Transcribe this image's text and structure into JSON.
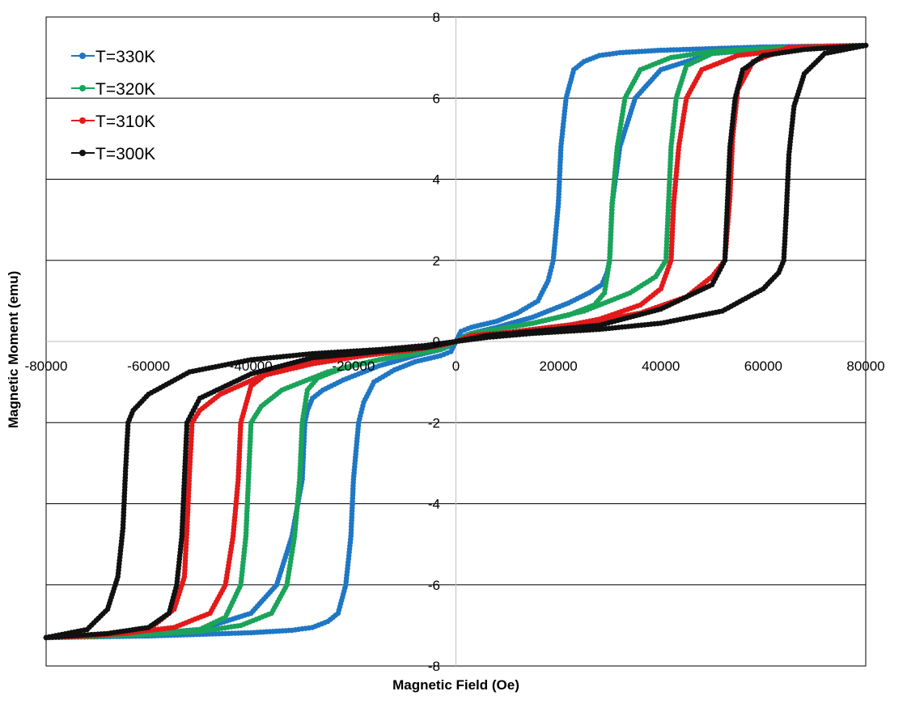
{
  "chart_data": {
    "type": "scatter",
    "title": "",
    "xlabel": "Magnetic Field (Oe)",
    "ylabel": "Magnetic Moment (emu)",
    "xlim": [
      -80000,
      80000
    ],
    "ylim": [
      -8,
      8
    ],
    "x_ticks": [
      -80000,
      -60000,
      -40000,
      -20000,
      0,
      20000,
      40000,
      60000,
      80000
    ],
    "y_ticks": [
      -8,
      -6,
      -4,
      -2,
      0,
      2,
      4,
      6,
      8
    ],
    "x_tick_labels": [
      "-80000",
      "-60000",
      "-40000",
      "-20000",
      "0",
      "20000",
      "40000",
      "60000",
      "80000"
    ],
    "y_tick_labels": [
      "-8",
      "-6",
      "-4",
      "-2",
      "0",
      "2",
      "4",
      "6",
      "8"
    ],
    "grid": "horizontal",
    "legend_position": "top-left",
    "series": [
      {
        "name": "T=330K",
        "color": "#1f77c4",
        "x": [
          -80000,
          -70000,
          -60000,
          -50000,
          -40000,
          -35000,
          -32000,
          -30000,
          -29500,
          -29000,
          -28000,
          -26000,
          -22000,
          -15000,
          -8000,
          -3000,
          -1000,
          0,
          1000,
          3000,
          8000,
          12000,
          16000,
          18000,
          19000,
          20000,
          20500,
          21500,
          23000,
          25000,
          28000,
          32000,
          40000,
          50000,
          60000,
          70000,
          80000,
          70000,
          60000,
          50000,
          40000,
          35000,
          32000,
          30500,
          30000,
          29500,
          28500,
          26000,
          22000,
          15000,
          8000,
          3000,
          1000,
          0,
          -1000,
          -3000,
          -8000,
          -12000,
          -16000,
          -18000,
          -19000,
          -20000,
          -20500,
          -21500,
          -23000,
          -25000,
          -28000,
          -32000,
          -40000,
          -50000,
          -60000,
          -70000,
          -80000
        ],
        "y": [
          -7.3,
          -7.25,
          -7.2,
          -7.1,
          -6.7,
          -6.0,
          -4.8,
          -3.4,
          -2.0,
          -1.7,
          -1.4,
          -1.2,
          -0.95,
          -0.6,
          -0.35,
          -0.2,
          -0.1,
          0.0,
          0.25,
          0.35,
          0.5,
          0.7,
          1.0,
          1.5,
          2.0,
          3.4,
          4.8,
          6.0,
          6.7,
          6.9,
          7.05,
          7.12,
          7.18,
          7.22,
          7.26,
          7.28,
          7.3,
          7.25,
          7.2,
          7.1,
          6.7,
          6.0,
          4.8,
          3.4,
          2.0,
          1.7,
          1.4,
          1.2,
          0.95,
          0.6,
          0.35,
          0.2,
          0.1,
          0.0,
          -0.25,
          -0.35,
          -0.5,
          -0.7,
          -1.0,
          -1.5,
          -2.0,
          -3.4,
          -4.8,
          -6.0,
          -6.7,
          -6.9,
          -7.05,
          -7.12,
          -7.18,
          -7.22,
          -7.26,
          -7.28,
          -7.3
        ]
      },
      {
        "name": "T=320K",
        "color": "#1aa45a",
        "x": [
          -80000,
          -70000,
          -60000,
          -50000,
          -45000,
          -42000,
          -41000,
          -40500,
          -40000,
          -38000,
          -34000,
          -25000,
          -15000,
          -8000,
          -3000,
          0,
          3000,
          8000,
          15000,
          22000,
          27000,
          29000,
          30000,
          30500,
          31500,
          33000,
          36000,
          42000,
          50000,
          60000,
          70000,
          80000,
          70000,
          60000,
          50000,
          45000,
          43000,
          42000,
          41500,
          41000,
          39000,
          34000,
          25000,
          15000,
          8000,
          3000,
          0,
          -3000,
          -8000,
          -15000,
          -22000,
          -27000,
          -29000,
          -30000,
          -30500,
          -31500,
          -33000,
          -36000,
          -42000,
          -50000,
          -60000,
          -70000,
          -80000
        ],
        "y": [
          -7.3,
          -7.27,
          -7.22,
          -7.1,
          -6.8,
          -6.0,
          -4.8,
          -3.4,
          -2.0,
          -1.6,
          -1.2,
          -0.75,
          -0.45,
          -0.3,
          -0.15,
          0.0,
          0.2,
          0.3,
          0.45,
          0.65,
          0.9,
          1.2,
          2.0,
          3.4,
          4.8,
          6.0,
          6.7,
          7.0,
          7.15,
          7.22,
          7.27,
          7.3,
          7.27,
          7.22,
          7.1,
          6.8,
          6.0,
          4.8,
          3.4,
          2.0,
          1.6,
          1.2,
          0.75,
          0.45,
          0.3,
          0.15,
          0.0,
          -0.2,
          -0.3,
          -0.45,
          -0.65,
          -0.9,
          -1.2,
          -2.0,
          -3.4,
          -4.8,
          -6.0,
          -6.7,
          -7.0,
          -7.15,
          -7.22,
          -7.27,
          -7.3
        ]
      },
      {
        "name": "T=310K",
        "color": "#e31a1a",
        "x": [
          -80000,
          -70000,
          -60000,
          -55000,
          -53000,
          -52500,
          -52000,
          -51500,
          -50000,
          -46000,
          -38000,
          -28000,
          -18000,
          -8000,
          -3000,
          0,
          3000,
          8000,
          18000,
          28000,
          36000,
          40000,
          42000,
          42500,
          43500,
          45000,
          48000,
          55000,
          65000,
          80000,
          65000,
          58000,
          55000,
          54000,
          53500,
          52500,
          50000,
          45000,
          36000,
          25000,
          15000,
          6000,
          0,
          -6000,
          -15000,
          -25000,
          -36000,
          -40000,
          -42000,
          -42500,
          -43500,
          -45000,
          -48000,
          -55000,
          -65000,
          -80000
        ],
        "y": [
          -7.3,
          -7.25,
          -7.1,
          -6.6,
          -5.8,
          -4.6,
          -3.2,
          -2.0,
          -1.7,
          -1.3,
          -0.85,
          -0.55,
          -0.35,
          -0.2,
          -0.1,
          0.0,
          0.15,
          0.2,
          0.3,
          0.55,
          0.9,
          1.3,
          2.0,
          3.4,
          4.8,
          6.0,
          6.7,
          7.05,
          7.2,
          7.3,
          7.25,
          6.9,
          6.2,
          5.0,
          3.6,
          2.0,
          1.6,
          1.1,
          0.7,
          0.45,
          0.3,
          0.15,
          0.0,
          -0.15,
          -0.3,
          -0.45,
          -0.7,
          -1.1,
          -2.0,
          -3.4,
          -4.8,
          -6.0,
          -6.7,
          -7.05,
          -7.2,
          -7.3
        ]
      },
      {
        "name": "T=300K",
        "color": "#111111",
        "x": [
          -80000,
          -72000,
          -68000,
          -66000,
          -65000,
          -64500,
          -64000,
          -63000,
          -60000,
          -52000,
          -40000,
          -28000,
          -15000,
          -6000,
          0,
          6000,
          15000,
          28000,
          40000,
          50000,
          52500,
          53000,
          53500,
          54500,
          56000,
          60000,
          68000,
          80000,
          72000,
          68000,
          66000,
          65000,
          64500,
          64000,
          63000,
          60000,
          52000,
          40000,
          28000,
          15000,
          6000,
          0,
          -6000,
          -15000,
          -28000,
          -40000,
          -50000,
          -52500,
          -53000,
          -53500,
          -54500,
          -56000,
          -60000,
          -68000,
          -80000
        ],
        "y": [
          -7.3,
          -7.1,
          -6.6,
          -5.8,
          -4.6,
          -3.2,
          -2.0,
          -1.7,
          -1.3,
          -0.75,
          -0.45,
          -0.3,
          -0.2,
          -0.1,
          0.0,
          0.15,
          0.25,
          0.4,
          0.8,
          1.4,
          2.0,
          3.4,
          4.8,
          6.0,
          6.7,
          7.05,
          7.2,
          7.3,
          7.1,
          6.6,
          5.8,
          4.6,
          3.2,
          2.0,
          1.7,
          1.3,
          0.75,
          0.45,
          0.3,
          0.2,
          0.1,
          0.0,
          -0.15,
          -0.25,
          -0.4,
          -0.8,
          -1.4,
          -2.0,
          -3.4,
          -4.8,
          -6.0,
          -6.7,
          -7.05,
          -7.2,
          -7.3
        ]
      }
    ]
  }
}
